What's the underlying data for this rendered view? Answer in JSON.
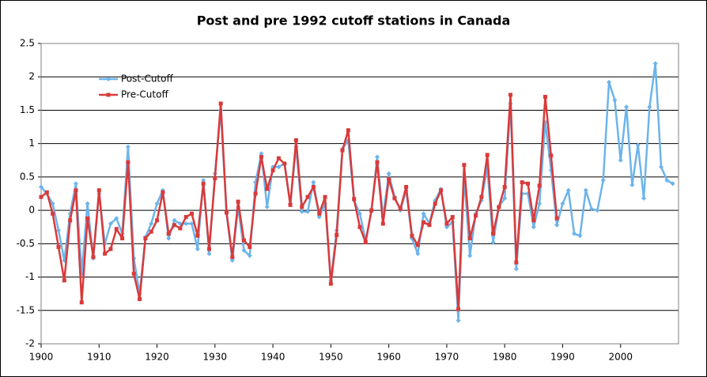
{
  "chart_data": {
    "type": "line",
    "title": "Post and pre 1992 cutoff stations in Canada",
    "x": [
      1900,
      1901,
      1902,
      1903,
      1904,
      1905,
      1906,
      1907,
      1908,
      1909,
      1910,
      1911,
      1912,
      1913,
      1914,
      1915,
      1916,
      1917,
      1918,
      1919,
      1920,
      1921,
      1922,
      1923,
      1924,
      1925,
      1926,
      1927,
      1928,
      1929,
      1930,
      1931,
      1932,
      1933,
      1934,
      1935,
      1936,
      1937,
      1938,
      1939,
      1940,
      1941,
      1942,
      1943,
      1944,
      1945,
      1946,
      1947,
      1948,
      1949,
      1950,
      1951,
      1952,
      1953,
      1954,
      1955,
      1956,
      1957,
      1958,
      1959,
      1960,
      1961,
      1962,
      1963,
      1964,
      1965,
      1966,
      1967,
      1968,
      1969,
      1970,
      1971,
      1972,
      1973,
      1974,
      1975,
      1976,
      1977,
      1978,
      1979,
      1980,
      1981,
      1982,
      1983,
      1984,
      1985,
      1986,
      1987,
      1988,
      1989,
      1990,
      1991,
      1992,
      1993,
      1994,
      1995,
      1996,
      1997,
      1998,
      1999,
      2000,
      2001,
      2002,
      2003,
      2004,
      2005,
      2006,
      2007,
      2008,
      2009
    ],
    "series": [
      {
        "name": "Post-Cutoff",
        "color": "#6cb4ec",
        "marker": "diamond",
        "values": [
          0.35,
          0.25,
          0.1,
          -0.3,
          -0.75,
          -0.05,
          0.4,
          -0.95,
          0.1,
          -0.72,
          0.25,
          -0.5,
          -0.2,
          -0.12,
          -0.35,
          0.95,
          -0.72,
          -1.25,
          -0.4,
          -0.2,
          0.1,
          0.3,
          -0.42,
          -0.15,
          -0.2,
          -0.2,
          -0.2,
          -0.58,
          0.45,
          -0.65,
          0.55,
          1.5,
          -0.05,
          -0.75,
          0.05,
          -0.6,
          -0.68,
          0.42,
          0.85,
          0.05,
          0.65,
          0.65,
          0.7,
          0.1,
          0.95,
          -0.02,
          -0.02,
          0.42,
          -0.1,
          0.1,
          -1.05,
          -0.3,
          0.92,
          1.05,
          0.15,
          -0.05,
          -0.45,
          -0.02,
          0.8,
          -0.1,
          0.55,
          0.2,
          0.0,
          0.3,
          -0.42,
          -0.65,
          -0.05,
          -0.2,
          0.15,
          0.32,
          -0.25,
          -0.18,
          -1.65,
          0.5,
          -0.68,
          -0.05,
          0.15,
          0.65,
          -0.48,
          0.05,
          0.18,
          1.6,
          -0.88,
          0.25,
          0.25,
          -0.25,
          0.1,
          1.32,
          0.6,
          -0.22,
          0.1,
          0.3,
          -0.35,
          -0.38,
          0.3,
          0.02,
          0.0,
          0.45,
          1.92,
          1.65,
          0.75,
          1.55,
          0.38,
          0.98,
          0.18,
          1.55,
          2.2,
          0.65,
          0.45,
          0.4
        ]
      },
      {
        "name": "Pre-Cutoff",
        "color": "#d93a3a",
        "marker": "square",
        "values": [
          0.2,
          0.27,
          -0.05,
          -0.55,
          -1.05,
          -0.15,
          0.3,
          -1.38,
          -0.12,
          -0.7,
          0.3,
          -0.65,
          -0.58,
          -0.28,
          -0.42,
          0.72,
          -0.95,
          -1.33,
          -0.42,
          -0.32,
          -0.15,
          0.27,
          -0.35,
          -0.22,
          -0.27,
          -0.1,
          -0.05,
          -0.38,
          0.4,
          -0.58,
          0.48,
          1.6,
          -0.03,
          -0.7,
          0.13,
          -0.45,
          -0.55,
          0.25,
          0.8,
          0.32,
          0.6,
          0.78,
          0.7,
          0.08,
          1.05,
          0.05,
          0.2,
          0.35,
          -0.05,
          0.2,
          -1.1,
          -0.37,
          0.9,
          1.2,
          0.17,
          -0.25,
          -0.48,
          0.0,
          0.72,
          -0.2,
          0.47,
          0.18,
          0.02,
          0.35,
          -0.38,
          -0.52,
          -0.18,
          -0.22,
          0.1,
          0.3,
          -0.2,
          -0.1,
          -1.48,
          0.68,
          -0.42,
          -0.08,
          0.2,
          0.83,
          -0.35,
          0.05,
          0.35,
          1.73,
          -0.78,
          0.42,
          0.4,
          -0.15,
          0.37,
          1.7,
          0.82,
          -0.12,
          null,
          null,
          null,
          null,
          null,
          null,
          null,
          null,
          null,
          null,
          null,
          null,
          null,
          null,
          null,
          null,
          null,
          null,
          null,
          null
        ]
      }
    ],
    "xlim": [
      1900,
      2010
    ],
    "xticks": [
      1900,
      1910,
      1920,
      1930,
      1940,
      1950,
      1960,
      1970,
      1980,
      1990,
      2000
    ],
    "ylim": [
      -2,
      2.5
    ],
    "yticks": [
      -2,
      -1.5,
      -1,
      -0.5,
      0,
      0.5,
      1,
      1.5,
      2,
      2.5
    ],
    "grid": true,
    "legend_position": "upper left"
  }
}
